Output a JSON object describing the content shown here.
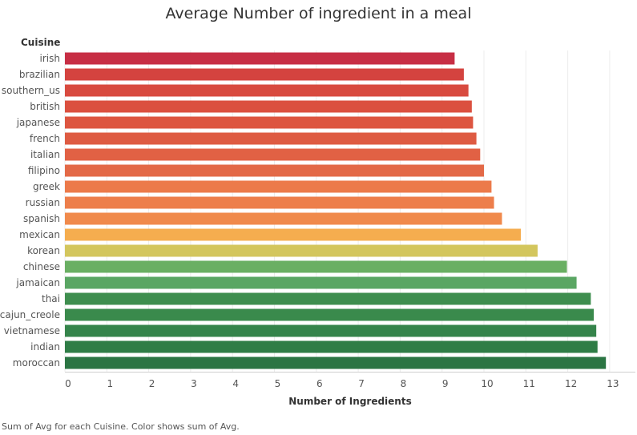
{
  "chart_data": {
    "type": "bar",
    "orientation": "horizontal",
    "title": "Average Number of ingredient in a meal",
    "ylabel": "Cuisine",
    "xlabel": "Number of Ingredients",
    "categories": [
      "irish",
      "brazilian",
      "southern_us",
      "british",
      "japanese",
      "french",
      "italian",
      "filipino",
      "greek",
      "russian",
      "spanish",
      "mexican",
      "korean",
      "chinese",
      "jamaican",
      "thai",
      "cajun_creole",
      "vietnamese",
      "indian",
      "moroccan"
    ],
    "values": [
      9.3,
      9.52,
      9.63,
      9.71,
      9.74,
      9.82,
      9.91,
      10.0,
      10.18,
      10.24,
      10.43,
      10.88,
      11.28,
      11.98,
      12.21,
      12.55,
      12.62,
      12.68,
      12.71,
      12.91
    ],
    "colors": [
      "#c72e44",
      "#d4433f",
      "#d84a3f",
      "#db503f",
      "#dd5540",
      "#de5b42",
      "#e16144",
      "#e36947",
      "#ec7a4a",
      "#ed7e4b",
      "#f08a4c",
      "#f5ad4f",
      "#d3c65d",
      "#6aaf63",
      "#5aa663",
      "#3f8e4f",
      "#3a8a4c",
      "#35844b",
      "#2f7d46",
      "#2b7543"
    ],
    "xlim": [
      0,
      13
    ],
    "xticks": [
      "0",
      "1",
      "2",
      "3",
      "4",
      "5",
      "6",
      "7",
      "8",
      "9",
      "10",
      "11",
      "12",
      "13"
    ],
    "grid": "vertical",
    "legend": "none"
  },
  "footnote": "Sum of Avg for each Cuisine.  Color shows sum of Avg."
}
